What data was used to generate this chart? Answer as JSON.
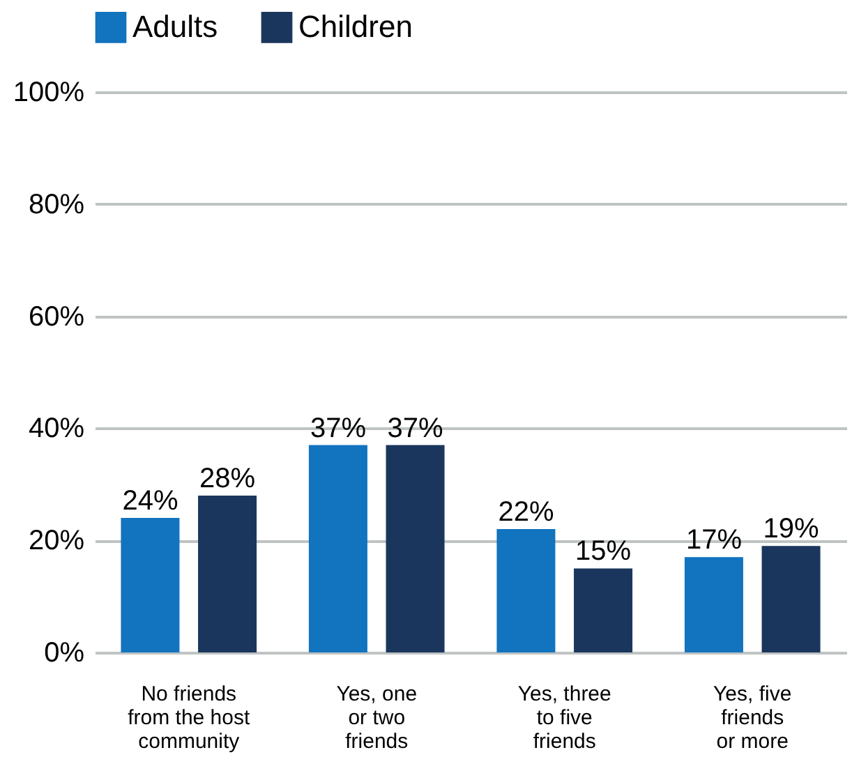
{
  "chart_data": {
    "type": "bar",
    "categories": [
      "No friends\nfrom the host\ncommunity",
      "Yes, one\nor two\nfriends",
      "Yes, three\nto five\nfriends",
      "Yes, five\nfriends\nor more"
    ],
    "series": [
      {
        "name": "Adults",
        "color": "#1273be",
        "values": [
          24,
          37,
          22,
          17
        ],
        "value_labels": [
          "24%",
          "37%",
          "22%",
          "17%"
        ]
      },
      {
        "name": "Children",
        "color": "#1a365d",
        "values": [
          28,
          37,
          15,
          19
        ],
        "value_labels": [
          "28%",
          "37%",
          "15%",
          "19%"
        ]
      }
    ],
    "ylim": [
      0,
      100
    ],
    "yticks": [
      {
        "value": 0,
        "label": "0%"
      },
      {
        "value": 20,
        "label": "20%"
      },
      {
        "value": 40,
        "label": "40%"
      },
      {
        "value": 60,
        "label": "60%"
      },
      {
        "value": 80,
        "label": "80%"
      },
      {
        "value": 100,
        "label": "100%"
      }
    ],
    "grid": "y",
    "legend": "top left"
  }
}
